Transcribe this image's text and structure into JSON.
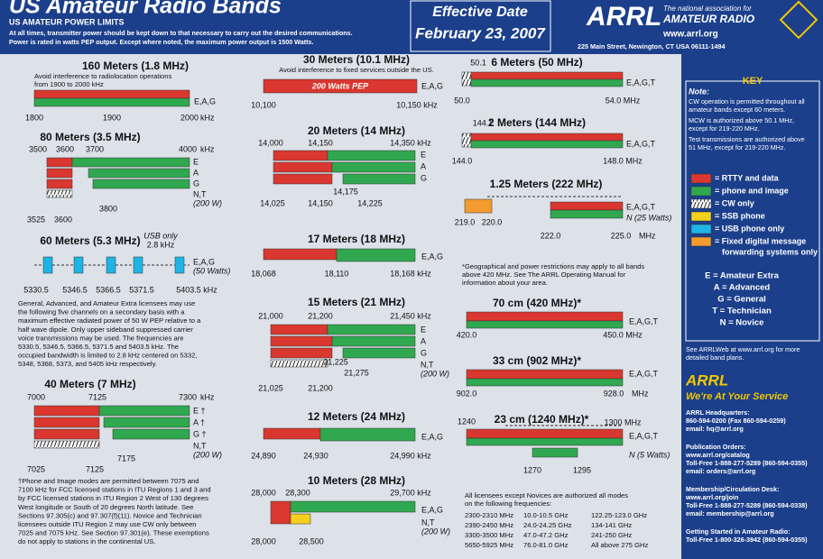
{
  "header": {
    "title": "US Amateur Radio Bands",
    "subtitle": "US AMATEUR POWER LIMITS",
    "note1": "At all times, transmitter power should be kept down to that necessary to carry out the desired communications.",
    "note2": "Power is rated in watts PEP output. Except where noted, the maximum power output is 1500 Watts.",
    "effective": "Effective Date",
    "date": "February 23, 2007",
    "arrl": "ARRL",
    "tag1": "The national association for",
    "tag2": "AMATEUR RADIO",
    "url": "www.arrl.org",
    "address": "225 Main Street, Newington, CT USA 06111-1494"
  },
  "bands": [
    {
      "title": "160 Meters (1.8 MHz)",
      "note": [
        "Avoid interference to radiolocation operations",
        "from 1900 to 2000 kHz"
      ],
      "labels": [
        "E,A,G",
        "1800",
        "1900",
        "2000",
        "kHz"
      ]
    },
    {
      "title": "80 Meters (3.5 MHz)",
      "labels": [
        "3500",
        "3600",
        "3700",
        "4000",
        "kHz",
        "E",
        "A",
        "G",
        "N,T",
        "(200 W)",
        "3800",
        "3525",
        "3600"
      ]
    },
    {
      "title": "60 Meters (5.3 MHz)",
      "labels": [
        "USB only",
        "2.8 kHz",
        "E,A,G",
        "(50 Watts)",
        "5330.5",
        "5346.5",
        "5366.5",
        "5371.5",
        "5403.5 kHz"
      ],
      "note": [
        "General, Advanced, and Amateur Extra licensees may use",
        "the following five channels on a secondary basis with a",
        "maximum effective radiated power of 50 W PEP relative to a",
        "half wave dipole. Only upper sideband suppressed carrier",
        "voice transmissions may be used. The frequencies are",
        "5330.5, 5346.5, 5366.5, 5371.5 and 5403.5 kHz. The",
        "occupied bandwidth is limited to 2.8 kHz centered on 5332,",
        "5348, 5368, 5373, and 5405 kHz respectively."
      ]
    },
    {
      "title": "40 Meters (7 MHz)",
      "labels": [
        "7000",
        "7125",
        "7300",
        "kHz",
        "E †",
        "A †",
        "G †",
        "N,T",
        "(200 W)",
        "7175",
        "7025",
        "7125"
      ],
      "note": [
        "†Phone and Image modes are permitted between 7075 and",
        "7100 kHz for FCC licensed stations in ITU Regions 1 and 3 and",
        "by FCC licensed stations in ITU Region 2 West of 130 degrees",
        "West longitude or South of 20 degrees North latitude. See",
        "Sections 97.305(c) and 97.307(f)(11). Novice and Technician",
        "licensees outside ITU Region 2 may use CW only between",
        "7025 and 7075 kHz. See Section 97.301(e). These exemptions",
        "do not apply to stations in the continental US."
      ]
    },
    {
      "title": "30 Meters (10.1 MHz)",
      "note": [
        "Avoid interference to fixed services outside the US."
      ],
      "labels": [
        "200 Watts PEP",
        "E,A,G",
        "10,100",
        "10,150 kHz"
      ]
    },
    {
      "title": "20 Meters (14 MHz)",
      "labels": [
        "14,000",
        "14,150",
        "14,350 kHz",
        "E",
        "A",
        "G",
        "14,175",
        "14,025",
        "14,150",
        "14,225"
      ]
    },
    {
      "title": "17 Meters (18 MHz)",
      "labels": [
        "E,A,G",
        "18,068",
        "18,110",
        "18,168 kHz"
      ]
    },
    {
      "title": "15 Meters (21 MHz)",
      "labels": [
        "21,000",
        "21,200",
        "21,450 kHz",
        "E",
        "A",
        "G",
        "21,225",
        "N,T",
        "(200 W)",
        "21,275",
        "21,025",
        "21,200"
      ]
    },
    {
      "title": "12 Meters (24 MHz)",
      "labels": [
        "E,A,G",
        "24,890",
        "24,930",
        "24,990 kHz"
      ]
    },
    {
      "title": "10 Meters (28 MHz)",
      "labels": [
        "28,000",
        "28,300",
        "29,700 kHz",
        "E,A,G",
        "N,T",
        "(200 W)",
        "28,000",
        "28,500"
      ]
    },
    {
      "title": "6 Meters (50 MHz)",
      "labels": [
        "50.1",
        "E,A,G,T",
        "50.0",
        "54.0 MHz"
      ]
    },
    {
      "title": "2 Meters (144 MHz)",
      "labels": [
        "144.1",
        "E,A,G,T",
        "144.0",
        "148.0 MHz"
      ]
    },
    {
      "title": "1.25 Meters (222 MHz)",
      "labels": [
        "E,A,G,T",
        "N (25 Watts)",
        "219.0",
        "220.0",
        "222.0",
        "225.0",
        "MHz"
      ]
    },
    {
      "title": "70 cm (420 MHz)*",
      "labels": [
        "E,A,G,T",
        "420.0",
        "450.0 MHz"
      ]
    },
    {
      "title": "33 cm (902 MHz)*",
      "labels": [
        "E,A,G,T",
        "902.0",
        "928.0",
        "MHz"
      ]
    },
    {
      "title": "23 cm (1240 MHz)*",
      "labels": [
        "1240",
        "1300 MHz",
        "E,A,G,T",
        "N (5 Watts)",
        "1270",
        "1295"
      ]
    }
  ],
  "geo_note": [
    "*Geographical and power restrictions may apply to all bands",
    "above 420 MHz. See The ARRL Operating Manual for",
    "information about your area."
  ],
  "all_modes": {
    "intro": [
      "All licensees except Novices are authorized all modes",
      "on the following frequencies:"
    ],
    "rows": [
      [
        "2300-2310 MHz",
        "10.0-10.5 GHz",
        "122.25-123.0 GHz"
      ],
      [
        "2390-2450 MHz",
        "24.0-24.25 GHz",
        "134-141 GHz"
      ],
      [
        "3300-3500 MHz",
        "47.0-47.2 GHz",
        "241-250 GHz"
      ],
      [
        "5650-5925 MHz",
        "76.0-81.0 GHz",
        "All above 275 GHz"
      ]
    ]
  },
  "key": {
    "heading": "KEY",
    "note_title": "Note:",
    "notes": [
      "CW operation is permitted throughout all",
      "amateur bands except 60 meters.",
      "MCW is authorized above 50.1 MHz,",
      "except for 219-220 MHz.",
      "Test transmissions are authorized above",
      "51 MHz, except for 219-220 MHz."
    ],
    "legend": [
      "= RTTY and data",
      "= phone and image",
      "= CW only",
      "= SSB phone",
      "= USB phone only",
      "= Fixed digital message",
      "forwarding systems only"
    ],
    "classes": [
      "E = Amateur Extra",
      "A = Advanced",
      "G = General",
      "T = Technician",
      "N = Novice"
    ],
    "see": [
      "See ARRLWeb at www.arrl.org for more",
      "detailed band plans."
    ]
  },
  "service": {
    "title": "ARRL",
    "subtitle": "We're At Your Service",
    "lines": [
      "ARRL Headquarters:",
      "860-594-0200 (Fax 860-594-0259)",
      "email: hq@arrl.org",
      "Publication Orders:",
      "www.arrl.org/catalog",
      "Toll-Free 1-888-277-5289 (860-594-0355)",
      "email: orders@arrl.org",
      "Membership/Circulation Desk:",
      "www.arrl.org/join",
      "Toll-Free 1-888-277-5289 (860-594-0338)",
      "email: membership@arrl.org",
      "Getting Started in Amateur Radio:",
      "Toll-Free 1-800-326-3942 (860-594-0355)"
    ]
  }
}
